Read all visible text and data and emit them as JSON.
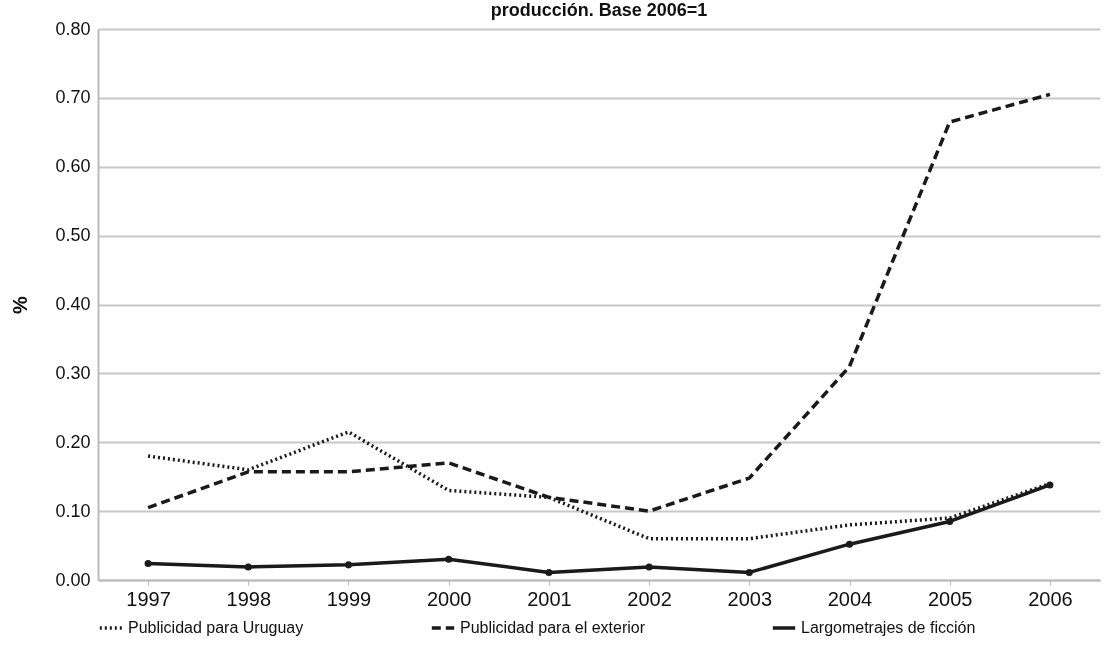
{
  "chart_data": {
    "type": "line",
    "title": "producción. Base 2006=1",
    "ylabel": "%",
    "categories": [
      "1997",
      "1998",
      "1999",
      "2000",
      "2001",
      "2002",
      "2003",
      "2004",
      "2005",
      "2006"
    ],
    "series": [
      {
        "name": "Publicidad para Uruguay",
        "color": "#1a1a1a",
        "line_style": "dotted",
        "marker": "none",
        "values": [
          0.18,
          0.16,
          0.215,
          0.13,
          0.12,
          0.06,
          0.06,
          0.08,
          0.09,
          0.14
        ]
      },
      {
        "name": "Publicidad para el exterior",
        "color": "#1a1a1a",
        "line_style": "dashed",
        "marker": "none",
        "values": [
          0.105,
          0.157,
          0.157,
          0.17,
          0.12,
          0.1,
          0.148,
          0.31,
          0.665,
          0.705
        ]
      },
      {
        "name": "Largometrajes de ficción",
        "color": "#1a1a1a",
        "line_style": "solid",
        "marker": "circle",
        "values": [
          0.024,
          0.019,
          0.022,
          0.03,
          0.011,
          0.019,
          0.011,
          0.052,
          0.085,
          0.138
        ]
      }
    ],
    "ylim": [
      0,
      0.8
    ],
    "yticks": [
      {
        "value": 0,
        "label": "0.00"
      },
      {
        "value": 0.1,
        "label": "0.10"
      },
      {
        "value": 0.2,
        "label": "0.20"
      },
      {
        "value": 0.3,
        "label": "0.30"
      },
      {
        "value": 0.4,
        "label": "0.40"
      },
      {
        "value": 0.5,
        "label": "0.50"
      },
      {
        "value": 0.6,
        "label": "0.60"
      },
      {
        "value": 0.7,
        "label": "0.70"
      },
      {
        "value": 0.8,
        "label": "0.80"
      }
    ],
    "grid": "y",
    "legend": "bottom"
  }
}
